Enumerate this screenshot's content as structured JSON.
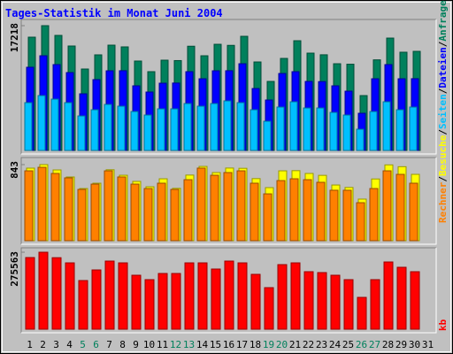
{
  "title": "Tages-Statistik im Monat Juni 2004",
  "legend_separator": "/",
  "chart_data": [
    {
      "type": "bar",
      "ylim": [
        0,
        17218
      ],
      "yticks": [
        17218
      ],
      "series": [
        {
          "name": "Anfragen",
          "color": "#00805c",
          "values": [
            15630,
            17218,
            15875,
            14410,
            11235,
            13190,
            14530,
            14290,
            12335,
            10870,
            12455,
            12400,
            14380,
            13065,
            14650,
            14500,
            15750,
            12210,
            9525,
            12700,
            15140,
            13430,
            13200,
            11965,
            11900,
            7570,
            12500,
            15505,
            13555,
            13675,
            null
          ]
        },
        {
          "name": "Dateien",
          "color": "#0000ff",
          "values": [
            11480,
            13065,
            11845,
            10745,
            7815,
            9770,
            10990,
            11000,
            8915,
            8060,
            9280,
            9300,
            10870,
            9890,
            10990,
            11000,
            11965,
            8545,
            6960,
            10620,
            10870,
            9525,
            9500,
            8915,
            8180,
            5130,
            9890,
            11845,
            9890,
            9900,
            null
          ]
        },
        {
          "name": "Seiten",
          "color": "#00c0ff",
          "values": [
            6595,
            7570,
            7080,
            6595,
            4760,
            5615,
            6350,
            6105,
            5370,
            4885,
            5740,
            5740,
            6470,
            6105,
            6470,
            6840,
            6595,
            5615,
            4030,
            5985,
            6715,
            5860,
            5860,
            5250,
            4885,
            2930,
            5370,
            6715,
            5615,
            5985,
            null
          ]
        }
      ]
    },
    {
      "type": "bar",
      "ylim": [
        0,
        843
      ],
      "yticks": [
        843
      ],
      "series": [
        {
          "name": "Besuche",
          "color": "#ffff00",
          "values": [
            804,
            843,
            784,
            706,
            578,
            637,
            786,
            725,
            657,
            598,
            686,
            580,
            727,
            823,
            755,
            805,
            802,
            688,
            588,
            774,
            776,
            745,
            724,
            617,
            590,
            461,
            684,
            840,
            820,
            735,
            null
          ]
        },
        {
          "name": "Rechner",
          "color": "#ff8000",
          "values": [
            774,
            813,
            745,
            696,
            568,
            627,
            774,
            706,
            627,
            578,
            637,
            568,
            676,
            804,
            725,
            755,
            774,
            637,
            519,
            666,
            686,
            676,
            647,
            559,
            559,
            421,
            578,
            774,
            735,
            637,
            null
          ]
        }
      ]
    },
    {
      "type": "bar",
      "ylim": [
        0,
        275563
      ],
      "yticks": [
        275563
      ],
      "categories": [
        "1",
        "2",
        "3",
        "4",
        "5",
        "6",
        "7",
        "8",
        "9",
        "10",
        "11",
        "12",
        "13",
        "14",
        "15",
        "16",
        "17",
        "18",
        "19",
        "20",
        "21",
        "22",
        "23",
        "24",
        "25",
        "26",
        "27",
        "28",
        "29",
        "30",
        "31"
      ],
      "category_colors": [
        "#000000",
        "#000000",
        "#000000",
        "#000000",
        "#00805c",
        "#00805c",
        "#000000",
        "#000000",
        "#000000",
        "#000000",
        "#000000",
        "#00805c",
        "#00805c",
        "#000000",
        "#000000",
        "#000000",
        "#000000",
        "#000000",
        "#00805c",
        "#00805c",
        "#000000",
        "#000000",
        "#000000",
        "#000000",
        "#000000",
        "#00805c",
        "#00805c",
        "#000000",
        "#000000",
        "#000000",
        "#000000"
      ],
      "series": [
        {
          "name": "kb",
          "color": "#ff0000",
          "values": [
            256500,
            275563,
            256000,
            237500,
            174200,
            212200,
            243900,
            237500,
            193200,
            177400,
            199500,
            199500,
            237500,
            237500,
            215400,
            243900,
            237500,
            196400,
            148800,
            231200,
            237500,
            205900,
            202700,
            193200,
            177400,
            114000,
            177400,
            240700,
            221700,
            205900,
            null
          ]
        }
      ]
    }
  ]
}
